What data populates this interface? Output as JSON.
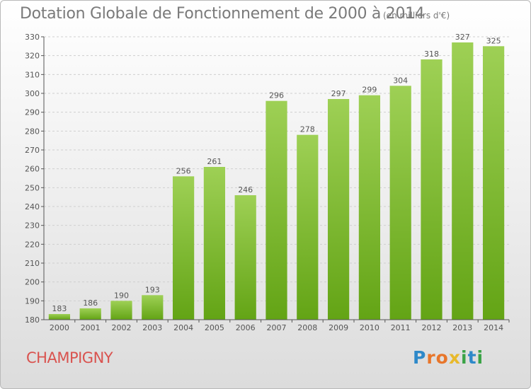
{
  "header": {
    "title": "Dotation Globale de Fonctionnement de 2000 à 2014",
    "subtitle": "(en milliers d'€)"
  },
  "footer": {
    "commune": "CHAMPIGNY",
    "logo": {
      "letters": [
        "P",
        "r",
        "o",
        "x",
        "i",
        "t",
        "i"
      ],
      "colors": [
        "#2e89c9",
        "#e8762b",
        "#e8762b",
        "#e8b92b",
        "#3aa346",
        "#2e89c9",
        "#3aa346"
      ]
    }
  },
  "colors": {
    "bar_top": "#9ed055",
    "bar_bottom": "#63a415",
    "grid": "#cfcfcf",
    "axis": "#555555"
  },
  "chart_data": {
    "type": "bar",
    "title": "Dotation Globale de Fonctionnement de 2000 à 2014",
    "subtitle": "(en milliers d'€)",
    "xlabel": "",
    "ylabel": "",
    "categories": [
      "2000",
      "2001",
      "2002",
      "2003",
      "2004",
      "2005",
      "2006",
      "2007",
      "2008",
      "2009",
      "2010",
      "2011",
      "2012",
      "2013",
      "2014"
    ],
    "values": [
      183,
      186,
      190,
      193,
      256,
      261,
      246,
      296,
      278,
      297,
      299,
      304,
      318,
      327,
      325
    ],
    "ylim": [
      180,
      330
    ],
    "yticks": [
      180,
      190,
      200,
      210,
      220,
      230,
      240,
      250,
      260,
      270,
      280,
      290,
      300,
      310,
      320,
      330
    ],
    "grid": true,
    "legend": "none"
  }
}
